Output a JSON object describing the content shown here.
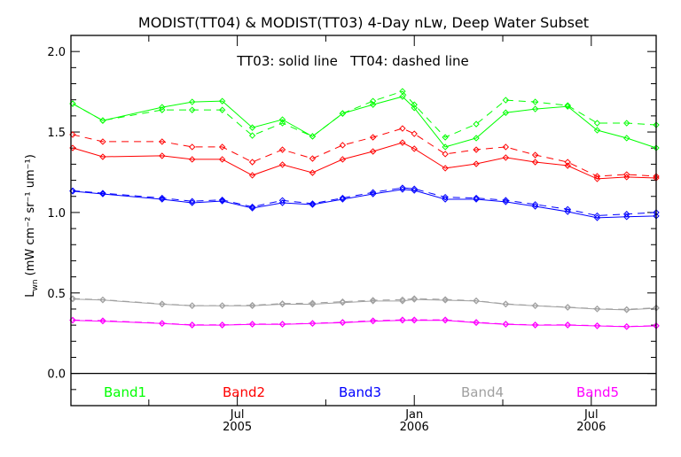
{
  "chart_data": {
    "type": "line",
    "title": "MODIST(TT04) & MODIST(TT03) 4-Day nLw, Deep Water Subset",
    "annotation": "TT03: solid line   TT04: dashed line",
    "ylabel": "L",
    "ylabel_sub": "wn",
    "ylabel_units": " (mW cm⁻² sr⁻¹ um⁻¹)",
    "xlabel": "",
    "ylim": [
      -0.2,
      2.1
    ],
    "xlim_months_since_jan2005": [
      0.36,
      20.2
    ],
    "y_ticks": [
      "0.0",
      "0.5",
      "1.0",
      "1.5",
      "2.0"
    ],
    "y_tick_values": [
      0,
      0.5,
      1.0,
      1.5,
      2.0
    ],
    "x_ticks": [
      {
        "month": 6,
        "line1": "Jul",
        "line2": "2005"
      },
      {
        "month": 12,
        "line1": "Jan",
        "line2": "2006"
      },
      {
        "month": 18,
        "line1": "Jul",
        "line2": "2006"
      }
    ],
    "x_minor_ticks": [
      3,
      9,
      15
    ],
    "x": [
      0.42,
      1.44,
      3.45,
      4.47,
      5.49,
      6.51,
      7.53,
      8.55,
      9.57,
      10.6,
      11.6,
      12.0,
      13.05,
      14.1,
      15.1,
      16.1,
      17.2,
      18.2,
      19.2,
      20.2
    ],
    "legend": [
      {
        "label": "Band1",
        "color": "#00ff00"
      },
      {
        "label": "Band2",
        "color": "#ff0000"
      },
      {
        "label": "Band3",
        "color": "#0000ff"
      },
      {
        "label": "Band4",
        "color": "#a0a0a0"
      },
      {
        "label": "Band5",
        "color": "#ff00ff"
      }
    ],
    "series": [
      {
        "name": "Band1 TT03",
        "band": "Band1",
        "style": "solid",
        "color": "#00ff00",
        "values": [
          1.676,
          1.571,
          1.654,
          1.687,
          1.692,
          1.527,
          1.577,
          1.473,
          1.615,
          1.67,
          1.72,
          1.65,
          1.407,
          1.462,
          1.62,
          1.643,
          1.659,
          1.511,
          1.462,
          1.401
        ]
      },
      {
        "name": "Band1 TT04",
        "band": "Band1",
        "style": "dashed",
        "color": "#00ff00",
        "values": [
          1.676,
          1.571,
          1.637,
          1.637,
          1.637,
          1.478,
          1.555,
          1.473,
          1.615,
          1.692,
          1.753,
          1.67,
          1.467,
          1.549,
          1.698,
          1.687,
          1.665,
          1.555,
          1.555,
          1.544
        ]
      },
      {
        "name": "Band2 TT03",
        "band": "Band2",
        "style": "solid",
        "color": "#ff0000",
        "values": [
          1.401,
          1.346,
          1.352,
          1.33,
          1.33,
          1.231,
          1.297,
          1.247,
          1.33,
          1.379,
          1.434,
          1.396,
          1.275,
          1.302,
          1.341,
          1.313,
          1.291,
          1.209,
          1.22,
          1.214
        ]
      },
      {
        "name": "Band2 TT04",
        "band": "Band2",
        "style": "dashed",
        "color": "#ff0000",
        "values": [
          1.484,
          1.44,
          1.44,
          1.407,
          1.407,
          1.313,
          1.39,
          1.335,
          1.418,
          1.467,
          1.522,
          1.489,
          1.363,
          1.39,
          1.407,
          1.357,
          1.313,
          1.225,
          1.236,
          1.225
        ]
      },
      {
        "name": "Band3 TT03",
        "band": "Band3",
        "style": "solid",
        "color": "#0000ff",
        "values": [
          1.132,
          1.115,
          1.082,
          1.06,
          1.071,
          1.027,
          1.06,
          1.049,
          1.082,
          1.115,
          1.143,
          1.137,
          1.082,
          1.082,
          1.066,
          1.038,
          1.005,
          0.967,
          0.973,
          0.978
        ]
      },
      {
        "name": "Band3 TT04",
        "band": "Band3",
        "style": "dashed",
        "color": "#0000ff",
        "values": [
          1.135,
          1.12,
          1.09,
          1.07,
          1.078,
          1.035,
          1.075,
          1.055,
          1.09,
          1.125,
          1.153,
          1.147,
          1.095,
          1.09,
          1.076,
          1.05,
          1.02,
          0.98,
          0.99,
          1.0
        ]
      },
      {
        "name": "Band4 TT03",
        "band": "Band4",
        "style": "solid",
        "color": "#a0a0a0",
        "values": [
          0.462,
          0.456,
          0.43,
          0.42,
          0.42,
          0.42,
          0.43,
          0.43,
          0.44,
          0.45,
          0.45,
          0.46,
          0.455,
          0.45,
          0.43,
          0.42,
          0.41,
          0.4,
          0.395,
          0.405
        ]
      },
      {
        "name": "Band4 TT04",
        "band": "Band4",
        "style": "dashed",
        "color": "#a0a0a0",
        "values": [
          0.465,
          0.458,
          0.432,
          0.422,
          0.422,
          0.424,
          0.434,
          0.437,
          0.446,
          0.455,
          0.458,
          0.465,
          0.46,
          0.452,
          0.432,
          0.422,
          0.412,
          0.402,
          0.398,
          0.408
        ]
      },
      {
        "name": "Band5 TT03",
        "band": "Band5",
        "style": "solid",
        "color": "#ff00ff",
        "values": [
          0.33,
          0.325,
          0.31,
          0.3,
          0.3,
          0.305,
          0.305,
          0.31,
          0.315,
          0.325,
          0.33,
          0.33,
          0.33,
          0.315,
          0.305,
          0.3,
          0.3,
          0.295,
          0.29,
          0.295
        ]
      },
      {
        "name": "Band5 TT04",
        "band": "Band5",
        "style": "dashed",
        "color": "#ff00ff",
        "values": [
          0.332,
          0.328,
          0.312,
          0.302,
          0.302,
          0.307,
          0.307,
          0.312,
          0.318,
          0.328,
          0.333,
          0.333,
          0.333,
          0.318,
          0.307,
          0.302,
          0.302,
          0.297,
          0.292,
          0.297
        ]
      }
    ]
  }
}
